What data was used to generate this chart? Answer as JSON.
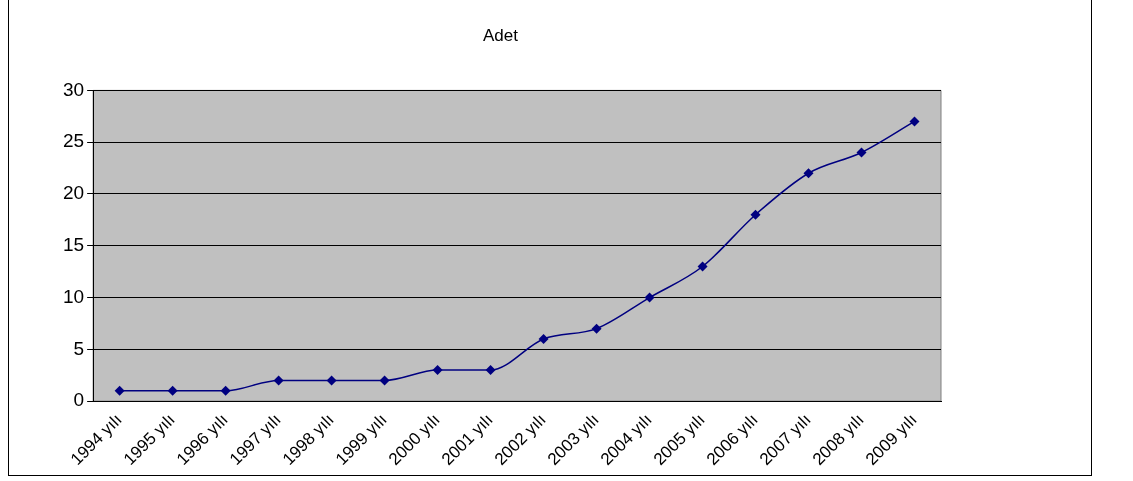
{
  "chart_data": {
    "type": "line",
    "title": "Adet",
    "categories": [
      "1994 yılı",
      "1995 yılı",
      "1996 yılı",
      "1997 yılı",
      "1998 yılı",
      "1999 yılı",
      "2000 yılı",
      "2001 yılı",
      "2002 yılı",
      "2003 yılı",
      "2004 yılı",
      "2005 yılı",
      "2006 yılı",
      "2007 yılı",
      "2008 yılı",
      "2009 yılı"
    ],
    "values": [
      1,
      1,
      1,
      2,
      2,
      2,
      3,
      3,
      6,
      7,
      10,
      13,
      18,
      22,
      24,
      27
    ],
    "color": "#000080",
    "marker": "diamond",
    "ylim": [
      0,
      30
    ],
    "yticks": [
      0,
      5,
      10,
      15,
      20,
      25,
      30
    ],
    "grid": "y",
    "legend": false
  }
}
